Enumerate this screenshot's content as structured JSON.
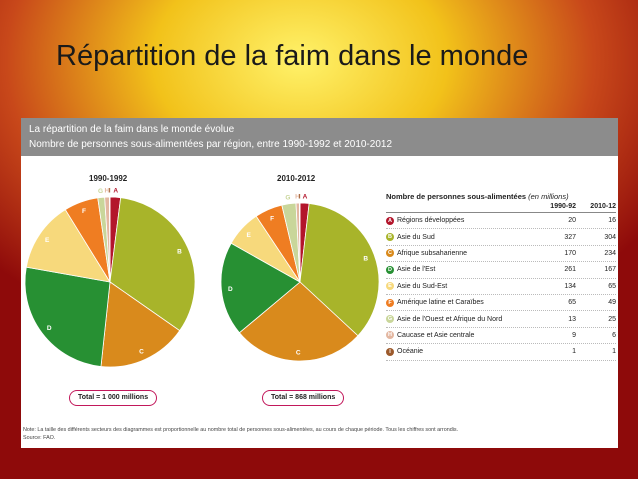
{
  "slide": {
    "title": "Répartition de la faim dans le monde"
  },
  "panel": {
    "title": "La répartition de la faim dans le monde évolue",
    "subtitle": "Nombre de personnes sous-alimentées par région, entre 1990-1992 et 2010-2012",
    "note": "Note: La taille des différents secteurs des diagrammes est proportionnelle au nombre total de personnes sous-alimentées, au cours de chaque période. Tous les chiffres sont arrondis.",
    "source": "Source: FAO."
  },
  "legend": {
    "heading": "Nombre de personnes sous-alimentées",
    "unit": "(en millions)",
    "col1": "1990-92",
    "col2": "2010-12"
  },
  "chart_data": {
    "type": "pie",
    "title": "La répartition de la faim dans le monde évolue",
    "subtitle": "Nombre de personnes sous-alimentées par région, entre 1990-1992 et 2010-2012",
    "categories": [
      {
        "letter": "A",
        "name": "Régions développées",
        "color": "#b3152b"
      },
      {
        "letter": "B",
        "name": "Asie du Sud",
        "color": "#a8b42a"
      },
      {
        "letter": "C",
        "name": "Afrique subsaharienne",
        "color": "#d98a1c"
      },
      {
        "letter": "D",
        "name": "Asie de l'Est",
        "color": "#279033"
      },
      {
        "letter": "E",
        "name": "Asie du Sud-Est",
        "color": "#f7d97c"
      },
      {
        "letter": "F",
        "name": "Amérique latine et Caraïbes",
        "color": "#ef7d22"
      },
      {
        "letter": "G",
        "name": "Asie de l'Ouest et Afrique du Nord",
        "color": "#c9d69a"
      },
      {
        "letter": "H",
        "name": "Caucase et Asie centrale",
        "color": "#e3b7a1"
      },
      {
        "letter": "I",
        "name": "Océanie",
        "color": "#9c5a2c"
      }
    ],
    "series": [
      {
        "name": "1990-1992",
        "values": [
          20,
          327,
          170,
          261,
          134,
          65,
          13,
          9,
          1
        ],
        "total_label": "Total = 1 000 millions"
      },
      {
        "name": "2010-2012",
        "values": [
          16,
          304,
          234,
          167,
          65,
          49,
          25,
          6,
          1
        ],
        "total_label": "Total = 868 millions"
      }
    ],
    "legend_position": "right"
  }
}
